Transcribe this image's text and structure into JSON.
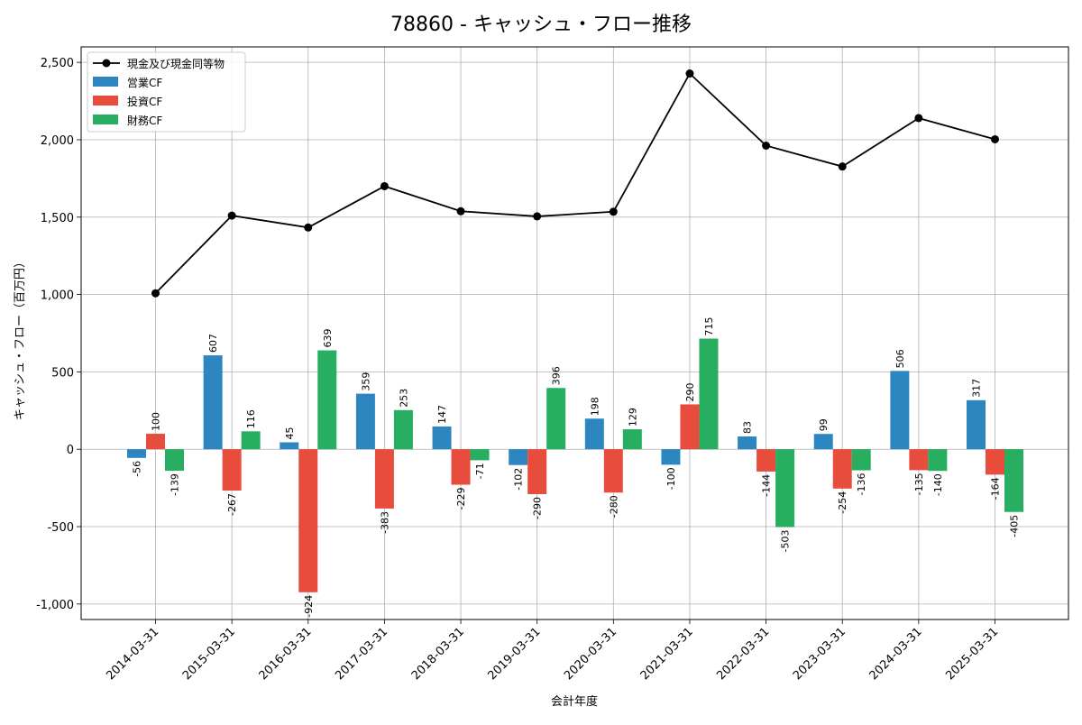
{
  "chart_data": {
    "type": "bar",
    "title": "78860 - キャッシュ・フロー推移",
    "xlabel": "会計年度",
    "ylabel": "キャッシュ・フロー（百万円）",
    "categories": [
      "2014-03-31",
      "2015-03-31",
      "2016-03-31",
      "2017-03-31",
      "2018-03-31",
      "2019-03-31",
      "2020-03-31",
      "2021-03-31",
      "2022-03-31",
      "2023-03-31",
      "2024-03-31",
      "2025-03-31"
    ],
    "ylim": [
      -1100,
      2600
    ],
    "yticks": [
      -1000,
      -500,
      0,
      500,
      1000,
      1500,
      2000,
      2500
    ],
    "ytick_labels": [
      "-1,000",
      "-500",
      "0",
      "500",
      "1,000",
      "1,500",
      "2,000",
      "2,500"
    ],
    "grid": true,
    "legend_position": "top-left",
    "series": [
      {
        "name": "営業CF",
        "kind": "bar",
        "color": "#2e86c1",
        "values": [
          -56,
          607,
          45,
          359,
          147,
          -102,
          198,
          -100,
          83,
          99,
          506,
          317
        ]
      },
      {
        "name": "投資CF",
        "kind": "bar",
        "color": "#e74c3c",
        "values": [
          100,
          -267,
          -924,
          -383,
          -229,
          -290,
          -280,
          290,
          -144,
          -254,
          -135,
          -164
        ]
      },
      {
        "name": "財務CF",
        "kind": "bar",
        "color": "#27ae60",
        "values": [
          -139,
          116,
          639,
          253,
          -71,
          396,
          129,
          715,
          -503,
          -136,
          -140,
          -405
        ]
      },
      {
        "name": "現金及び現金同等物",
        "kind": "line",
        "color": "#000000",
        "values": [
          1008,
          1510,
          1433,
          1700,
          1538,
          1505,
          1535,
          2428,
          1962,
          1827,
          2140,
          2003
        ]
      }
    ]
  }
}
